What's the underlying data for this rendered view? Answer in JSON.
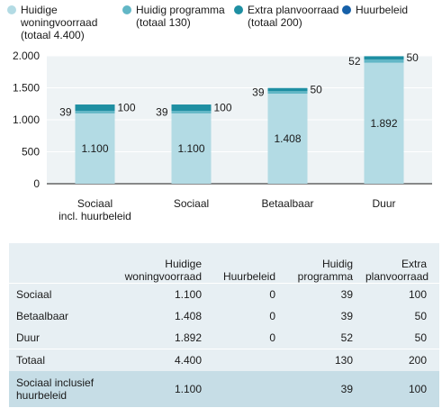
{
  "legend": [
    {
      "lines": [
        "Huidige",
        "woningvoorraad",
        "(totaal 4.400)"
      ],
      "color": "#b3dbe4"
    },
    {
      "lines": [
        "Huidig programma",
        "(totaal 130)"
      ],
      "color": "#62b7c6"
    },
    {
      "lines": [
        "Extra planvoorraad",
        "(totaal 200)"
      ],
      "color": "#1e8fa2"
    },
    {
      "lines": [
        "Huurbeleid"
      ],
      "color": "#1660a8"
    }
  ],
  "chart_data": {
    "type": "bar",
    "stacked": true,
    "categories": [
      [
        "Sociaal",
        "incl. huurbeleid"
      ],
      [
        "Sociaal"
      ],
      [
        "Betaalbaar"
      ],
      [
        "Duur"
      ]
    ],
    "series": [
      {
        "name": "Huidige woningvoorraad",
        "values": [
          1100,
          1100,
          1408,
          1892
        ],
        "color": "#b3dbe4"
      },
      {
        "name": "Huidig programma",
        "values": [
          39,
          39,
          39,
          52
        ],
        "color": "#62b7c6"
      },
      {
        "name": "Extra planvoorraad",
        "values": [
          100,
          100,
          50,
          50
        ],
        "color": "#1e8fa2"
      },
      {
        "name": "Huurbeleid",
        "values": [
          0,
          0,
          0,
          0
        ],
        "color": "#1660a8"
      }
    ],
    "data_labels": {
      "base": [
        "1.100",
        "1.100",
        "1.408",
        "1.892"
      ],
      "programma": [
        "39",
        "39",
        "39",
        "52"
      ],
      "extra": [
        "100",
        "100",
        "50",
        "50"
      ]
    },
    "yticks": [
      {
        "value": 0,
        "label": "0"
      },
      {
        "value": 500,
        "label": "500"
      },
      {
        "value": 1000,
        "label": "1.000"
      },
      {
        "value": 1500,
        "label": "1.500"
      },
      {
        "value": 2000,
        "label": "2.000"
      }
    ],
    "ylim": [
      0,
      2000
    ],
    "grid": true
  },
  "table": {
    "headers": [
      [
        ""
      ],
      [
        "Huidige",
        "woningvoorraad"
      ],
      [
        "Huurbeleid"
      ],
      [
        "Huidig",
        "programma"
      ],
      [
        "Extra",
        "planvoorraad"
      ]
    ],
    "rows": [
      {
        "label": [
          "Sociaal"
        ],
        "cells": [
          "1.100",
          "0",
          "39",
          "100"
        ]
      },
      {
        "label": [
          "Betaalbaar"
        ],
        "cells": [
          "1.408",
          "0",
          "39",
          "50"
        ]
      },
      {
        "label": [
          "Duur"
        ],
        "cells": [
          "1.892",
          "0",
          "52",
          "50"
        ]
      }
    ],
    "total": {
      "label": [
        "Totaal"
      ],
      "cells": [
        "4.400",
        "",
        "130",
        "200"
      ]
    },
    "total2": {
      "label": [
        "Sociaal inclusief",
        "huurbeleid"
      ],
      "cells": [
        "1.100",
        "",
        "39",
        "100"
      ]
    }
  }
}
